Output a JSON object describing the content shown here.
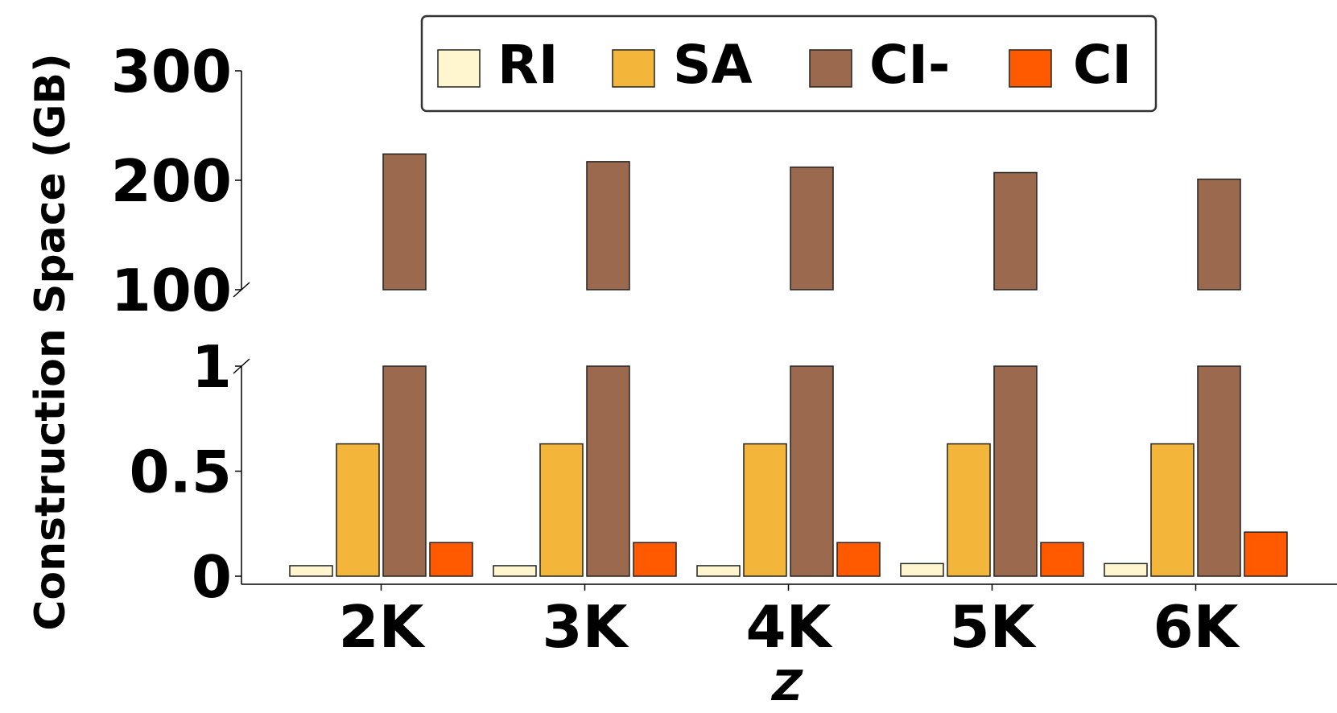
{
  "chart_data": {
    "type": "bar",
    "xlabel": "Z",
    "ylabel": "Construction Space (GB)",
    "categories": [
      "2K",
      "3K",
      "4K",
      "5K",
      "6K"
    ],
    "series": [
      {
        "name": "RI",
        "color": "#fff5cf",
        "values": [
          0.05,
          0.05,
          0.05,
          0.06,
          0.06
        ]
      },
      {
        "name": "SA",
        "color": "#f4b63a",
        "values": [
          0.63,
          0.63,
          0.63,
          0.63,
          0.63
        ]
      },
      {
        "name": "CI-",
        "color": "#9b694d",
        "values": [
          224,
          217,
          212,
          207,
          201
        ]
      },
      {
        "name": "CI",
        "color": "#ff5a00",
        "values": [
          0.16,
          0.16,
          0.16,
          0.16,
          0.21
        ]
      }
    ],
    "broken_axis": true,
    "upper_ylim": [
      100,
      300
    ],
    "upper_yticks": [
      100,
      200,
      300
    ],
    "lower_ylim": [
      0,
      1
    ],
    "lower_yticks": [
      "0",
      "0.5",
      "1"
    ],
    "legend_position": "top-center",
    "grid": false
  }
}
